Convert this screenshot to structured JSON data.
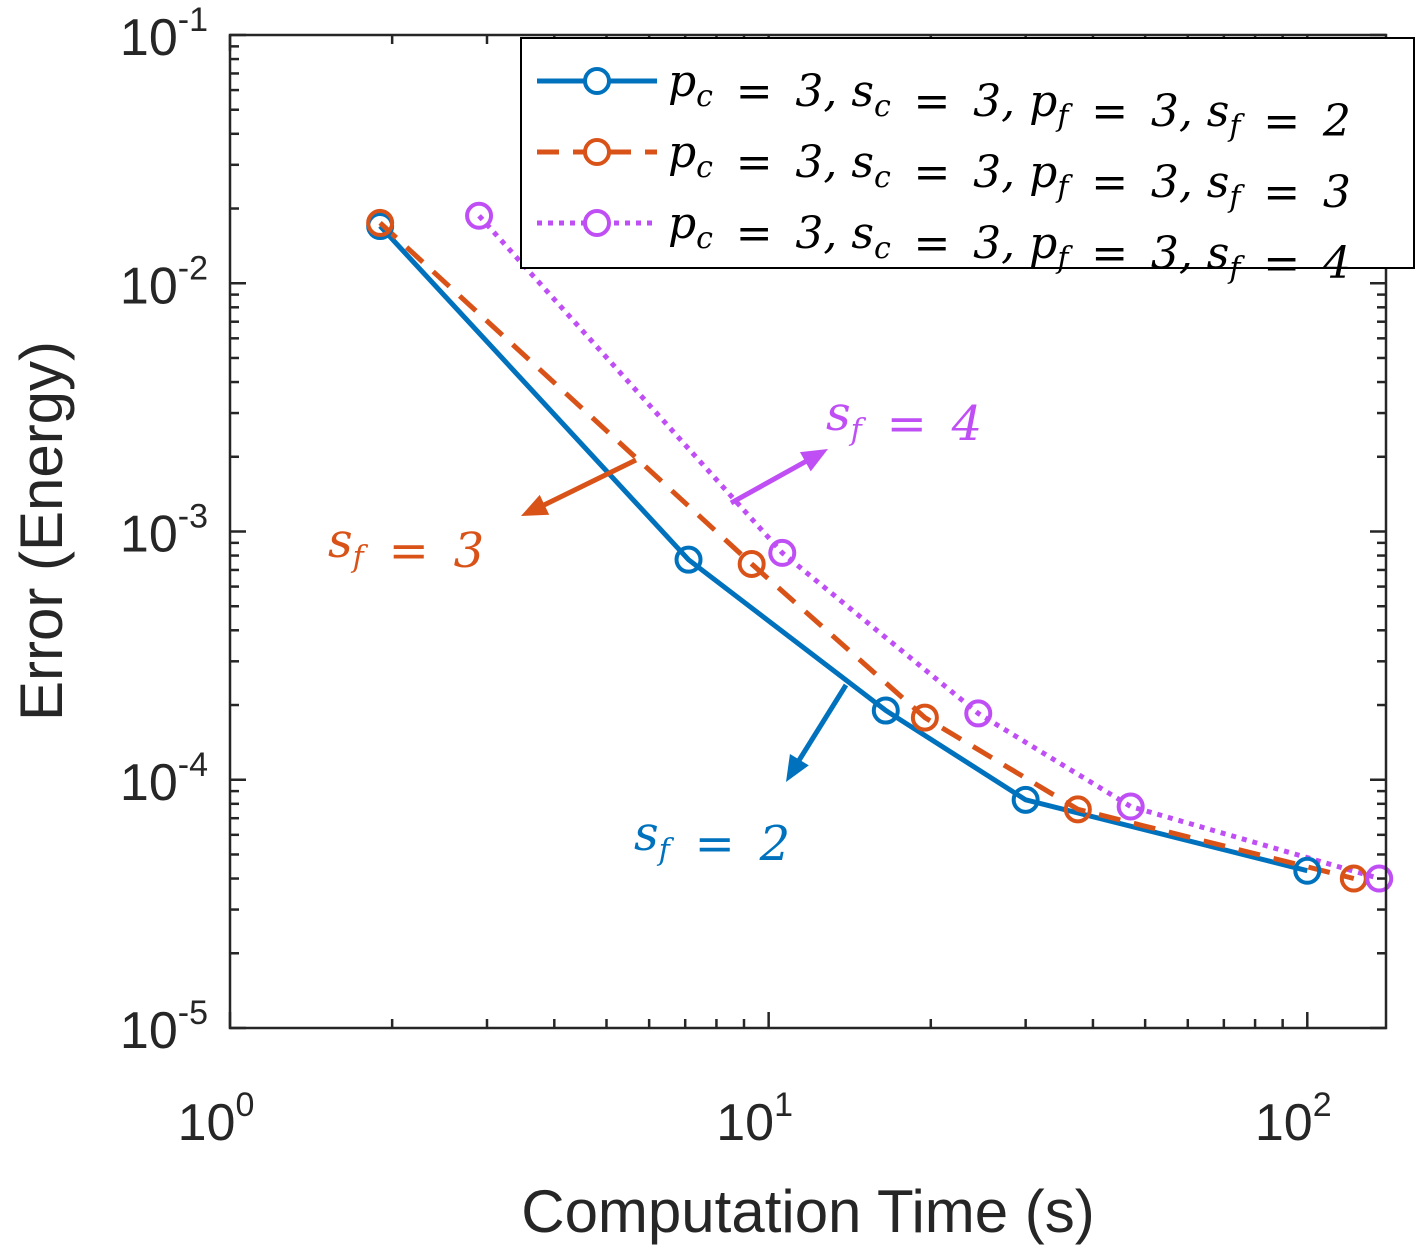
{
  "chart_data": {
    "type": "line",
    "xscale": "log",
    "yscale": "log",
    "xlabel": "Computation Time (s)",
    "ylabel": "Error (Energy)",
    "xlim": [
      1,
      140
    ],
    "ylim": [
      1e-05,
      0.1
    ],
    "xticks": [
      {
        "value": 1,
        "base": "10",
        "exp": "0"
      },
      {
        "value": 10,
        "base": "10",
        "exp": "1"
      },
      {
        "value": 100,
        "base": "10",
        "exp": "2"
      }
    ],
    "yticks": [
      {
        "value": 0.1,
        "base": "10",
        "exp": "-1"
      },
      {
        "value": 0.01,
        "base": "10",
        "exp": "-2"
      },
      {
        "value": 0.001,
        "base": "10",
        "exp": "-3"
      },
      {
        "value": 0.0001,
        "base": "10",
        "exp": "-4"
      },
      {
        "value": 1e-05,
        "base": "10",
        "exp": "-5"
      }
    ],
    "legend_position": "top-right",
    "series": [
      {
        "name": "p_c = 3, s_c = 3, p_f = 3, s_f = 2",
        "color": "#0072BD",
        "style": "solid",
        "x": [
          1.9,
          7.1,
          16.5,
          30.0,
          100.0
        ],
        "y": [
          0.017,
          0.00077,
          0.00019,
          8.3e-05,
          4.3e-05
        ]
      },
      {
        "name": "p_c = 3, s_c = 3, p_f = 3, s_f = 3",
        "color": "#D95319",
        "style": "dashed",
        "x": [
          1.9,
          9.3,
          19.5,
          37.5,
          122.0
        ],
        "y": [
          0.0175,
          0.00074,
          0.000178,
          7.6e-05,
          4e-05
        ]
      },
      {
        "name": "p_c = 3, s_c = 3, p_f = 3, s_f = 4",
        "color": "#BF4FF5",
        "style": "dotted",
        "x": [
          2.9,
          10.6,
          24.5,
          47.0,
          136.0
        ],
        "y": [
          0.0187,
          0.00082,
          0.000185,
          7.8e-05,
          4e-05
        ]
      }
    ],
    "annotations": [
      {
        "label": "s_f = 4",
        "color": "#BF4FF5"
      },
      {
        "label": "s_f = 3",
        "color": "#D95319"
      },
      {
        "label": "s_f = 2",
        "color": "#0072BD"
      }
    ]
  }
}
